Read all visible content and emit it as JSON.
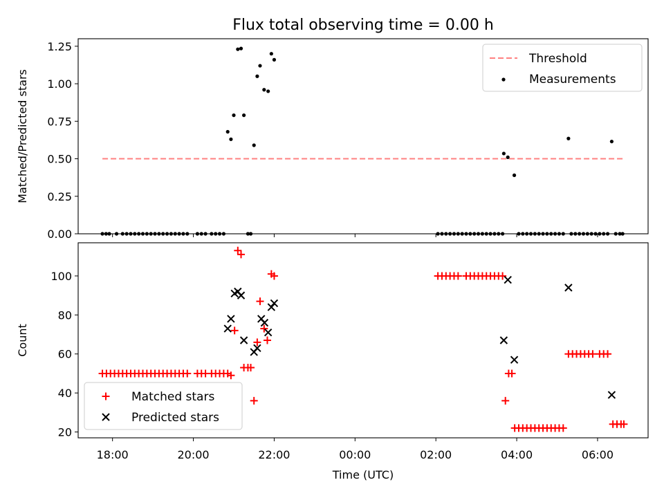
{
  "chart_data": {
    "title": "Flux total observing time = 0.00 h",
    "xlabel": "Time (UTC)",
    "x_unit": "hours (UTC, 18:00 on first day = 18; times after midnight continue past 24)",
    "x_tick_labels": [
      "18:00",
      "20:00",
      "22:00",
      "00:00",
      "02:00",
      "04:00",
      "06:00"
    ],
    "x_ticks": [
      18,
      20,
      22,
      24,
      26,
      28,
      30
    ],
    "xlim": [
      17.15,
      31.25
    ],
    "panels": [
      {
        "type": "scatter",
        "ylabel": "Matched/Predicted stars",
        "ylim": [
          0,
          1.3
        ],
        "yticks": [
          0.0,
          0.25,
          0.5,
          0.75,
          1.0,
          1.25
        ],
        "ytick_labels": [
          "0.00",
          "0.25",
          "0.50",
          "0.75",
          "1.00",
          "1.25"
        ],
        "legend": {
          "position": "upper right",
          "entries": [
            "Threshold",
            "Measurements"
          ]
        },
        "threshold": {
          "name": "Threshold",
          "value": 0.5,
          "x_range": [
            17.75,
            30.65
          ],
          "color": "#ff8080"
        },
        "series": [
          {
            "name": "Measurements",
            "color": "#000000",
            "marker": "dot",
            "points": [
              [
                17.75,
                0
              ],
              [
                17.84,
                0
              ],
              [
                17.92,
                0
              ],
              [
                18.1,
                0
              ],
              [
                18.25,
                0
              ],
              [
                18.35,
                0
              ],
              [
                18.45,
                0
              ],
              [
                18.55,
                0
              ],
              [
                18.65,
                0
              ],
              [
                18.75,
                0
              ],
              [
                18.85,
                0
              ],
              [
                18.95,
                0
              ],
              [
                19.05,
                0
              ],
              [
                19.15,
                0
              ],
              [
                19.25,
                0
              ],
              [
                19.35,
                0
              ],
              [
                19.45,
                0
              ],
              [
                19.55,
                0
              ],
              [
                19.65,
                0
              ],
              [
                19.75,
                0
              ],
              [
                19.85,
                0
              ],
              [
                20.1,
                0
              ],
              [
                20.2,
                0
              ],
              [
                20.3,
                0
              ],
              [
                20.45,
                0
              ],
              [
                20.55,
                0
              ],
              [
                20.65,
                0
              ],
              [
                20.75,
                0
              ],
              [
                20.85,
                0.68
              ],
              [
                20.93,
                0.63
              ],
              [
                21.0,
                0.79
              ],
              [
                21.1,
                1.23
              ],
              [
                21.18,
                1.235
              ],
              [
                21.25,
                0.79
              ],
              [
                21.35,
                0
              ],
              [
                21.42,
                0
              ],
              [
                21.5,
                0.59
              ],
              [
                21.58,
                1.05
              ],
              [
                21.65,
                1.12
              ],
              [
                21.75,
                0.96
              ],
              [
                21.85,
                0.95
              ],
              [
                21.93,
                1.2
              ],
              [
                22.0,
                1.16
              ],
              [
                26.05,
                0
              ],
              [
                26.15,
                0
              ],
              [
                26.25,
                0
              ],
              [
                26.35,
                0
              ],
              [
                26.45,
                0
              ],
              [
                26.55,
                0
              ],
              [
                26.65,
                0
              ],
              [
                26.75,
                0
              ],
              [
                26.85,
                0
              ],
              [
                26.95,
                0
              ],
              [
                27.05,
                0
              ],
              [
                27.15,
                0
              ],
              [
                27.25,
                0
              ],
              [
                27.35,
                0
              ],
              [
                27.45,
                0
              ],
              [
                27.55,
                0
              ],
              [
                27.65,
                0
              ],
              [
                27.68,
                0.535
              ],
              [
                27.78,
                0.51
              ],
              [
                27.94,
                0.39
              ],
              [
                28.05,
                0
              ],
              [
                28.15,
                0
              ],
              [
                28.25,
                0
              ],
              [
                28.35,
                0
              ],
              [
                28.45,
                0
              ],
              [
                28.55,
                0
              ],
              [
                28.65,
                0
              ],
              [
                28.75,
                0
              ],
              [
                28.85,
                0
              ],
              [
                28.95,
                0
              ],
              [
                29.05,
                0
              ],
              [
                29.15,
                0
              ],
              [
                29.28,
                0.635
              ],
              [
                29.35,
                0
              ],
              [
                29.45,
                0
              ],
              [
                29.55,
                0
              ],
              [
                29.65,
                0
              ],
              [
                29.75,
                0
              ],
              [
                29.85,
                0
              ],
              [
                29.95,
                0
              ],
              [
                30.05,
                0
              ],
              [
                30.15,
                0
              ],
              [
                30.25,
                0
              ],
              [
                30.35,
                0.615
              ],
              [
                30.45,
                0
              ],
              [
                30.55,
                0
              ],
              [
                30.62,
                0
              ]
            ]
          }
        ]
      },
      {
        "type": "scatter",
        "ylabel": "Count",
        "ylim": [
          17,
          117
        ],
        "yticks": [
          20,
          40,
          60,
          80,
          100
        ],
        "ytick_labels": [
          "20",
          "40",
          "60",
          "80",
          "100"
        ],
        "legend": {
          "position": "lower left",
          "entries": [
            "Matched stars",
            "Predicted stars"
          ]
        },
        "series": [
          {
            "name": "Matched stars",
            "color": "#ff0000",
            "marker": "plus",
            "points": [
              [
                17.75,
                50
              ],
              [
                17.85,
                50
              ],
              [
                17.95,
                50
              ],
              [
                18.05,
                50
              ],
              [
                18.15,
                50
              ],
              [
                18.25,
                50
              ],
              [
                18.35,
                50
              ],
              [
                18.45,
                50
              ],
              [
                18.55,
                50
              ],
              [
                18.65,
                50
              ],
              [
                18.75,
                50
              ],
              [
                18.85,
                50
              ],
              [
                18.95,
                50
              ],
              [
                19.05,
                50
              ],
              [
                19.15,
                50
              ],
              [
                19.25,
                50
              ],
              [
                19.35,
                50
              ],
              [
                19.45,
                50
              ],
              [
                19.55,
                50
              ],
              [
                19.65,
                50
              ],
              [
                19.75,
                50
              ],
              [
                19.85,
                50
              ],
              [
                20.1,
                50
              ],
              [
                20.2,
                50
              ],
              [
                20.3,
                50
              ],
              [
                20.45,
                50
              ],
              [
                20.55,
                50
              ],
              [
                20.65,
                50
              ],
              [
                20.75,
                50
              ],
              [
                20.85,
                50
              ],
              [
                20.93,
                49
              ],
              [
                21.02,
                72
              ],
              [
                21.1,
                113
              ],
              [
                21.18,
                111
              ],
              [
                21.25,
                53
              ],
              [
                21.35,
                53
              ],
              [
                21.42,
                53
              ],
              [
                21.5,
                36
              ],
              [
                21.58,
                66
              ],
              [
                21.65,
                87
              ],
              [
                21.75,
                73
              ],
              [
                21.83,
                67
              ],
              [
                21.93,
                101
              ],
              [
                22.0,
                100
              ],
              [
                26.05,
                100
              ],
              [
                26.15,
                100
              ],
              [
                26.25,
                100
              ],
              [
                26.35,
                100
              ],
              [
                26.45,
                100
              ],
              [
                26.55,
                100
              ],
              [
                26.75,
                100
              ],
              [
                26.85,
                100
              ],
              [
                26.95,
                100
              ],
              [
                27.05,
                100
              ],
              [
                27.15,
                100
              ],
              [
                27.25,
                100
              ],
              [
                27.35,
                100
              ],
              [
                27.45,
                100
              ],
              [
                27.55,
                100
              ],
              [
                27.65,
                100
              ],
              [
                27.72,
                36
              ],
              [
                27.8,
                50
              ],
              [
                27.88,
                50
              ],
              [
                27.95,
                22
              ],
              [
                28.05,
                22
              ],
              [
                28.15,
                22
              ],
              [
                28.25,
                22
              ],
              [
                28.35,
                22
              ],
              [
                28.45,
                22
              ],
              [
                28.55,
                22
              ],
              [
                28.65,
                22
              ],
              [
                28.75,
                22
              ],
              [
                28.85,
                22
              ],
              [
                28.95,
                22
              ],
              [
                29.05,
                22
              ],
              [
                29.15,
                22
              ],
              [
                29.28,
                60
              ],
              [
                29.38,
                60
              ],
              [
                29.48,
                60
              ],
              [
                29.58,
                60
              ],
              [
                29.68,
                60
              ],
              [
                29.78,
                60
              ],
              [
                29.88,
                60
              ],
              [
                30.05,
                60
              ],
              [
                30.15,
                60
              ],
              [
                30.25,
                60
              ],
              [
                30.38,
                24
              ],
              [
                30.48,
                24
              ],
              [
                30.58,
                24
              ],
              [
                30.65,
                24
              ]
            ]
          },
          {
            "name": "Predicted stars",
            "color": "#000000",
            "marker": "x",
            "points": [
              [
                20.85,
                73
              ],
              [
                20.93,
                78
              ],
              [
                21.02,
                91
              ],
              [
                21.1,
                92
              ],
              [
                21.18,
                90
              ],
              [
                21.25,
                67
              ],
              [
                21.5,
                61
              ],
              [
                21.58,
                63
              ],
              [
                21.68,
                78
              ],
              [
                21.76,
                76
              ],
              [
                21.85,
                71
              ],
              [
                21.93,
                84
              ],
              [
                22.0,
                86
              ],
              [
                27.68,
                67
              ],
              [
                27.78,
                98
              ],
              [
                27.94,
                57
              ],
              [
                29.28,
                94
              ],
              [
                30.35,
                39
              ]
            ]
          }
        ]
      }
    ]
  }
}
